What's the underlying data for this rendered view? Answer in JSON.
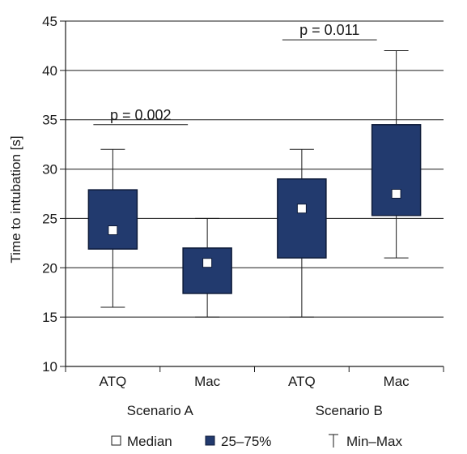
{
  "colors": {
    "box_fill": "#223a6e",
    "box_stroke": "#0d1a38",
    "median_fill": "#ffffff",
    "axis": "#1a1a1a",
    "grid": "#1a1a1a"
  },
  "chart_data": {
    "type": "box",
    "ylabel": "Time to intubation [s]",
    "ylim": [
      10,
      45
    ],
    "yticks": [
      10,
      15,
      20,
      25,
      30,
      35,
      40,
      45
    ],
    "grid": true,
    "categories": [
      "ATQ",
      "Mac",
      "ATQ",
      "Mac"
    ],
    "groups": [
      {
        "label": "Scenario A",
        "span": [
          0,
          1
        ]
      },
      {
        "label": "Scenario B",
        "span": [
          2,
          3
        ]
      }
    ],
    "boxes": [
      {
        "min": 16,
        "q1": 21.9,
        "median": 23.8,
        "q3": 27.9,
        "max": 32
      },
      {
        "min": 15,
        "q1": 17.4,
        "median": 20.5,
        "q3": 22,
        "max": 25
      },
      {
        "min": 15,
        "q1": 21,
        "median": 26,
        "q3": 29,
        "max": 32
      },
      {
        "min": 21,
        "q1": 25.3,
        "median": 27.5,
        "q3": 34.5,
        "max": 42
      }
    ],
    "annotations": [
      {
        "text": "p = 0.002",
        "from": 0,
        "to": 1,
        "y": 34.5
      },
      {
        "text": "p = 0.011",
        "from": 2,
        "to": 3,
        "y": 43.1
      }
    ],
    "legend": {
      "placement": "bottom",
      "items": [
        {
          "symbol": "median",
          "label": "Median"
        },
        {
          "symbol": "box",
          "label": "25–75%"
        },
        {
          "symbol": "whisker",
          "label": "Min–Max"
        }
      ]
    }
  }
}
